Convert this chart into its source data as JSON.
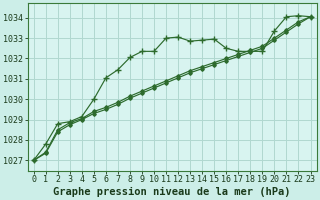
{
  "title": "Graphe pression niveau de la mer (hPa)",
  "bg_color": "#cceee8",
  "plot_bg_color": "#d8f4f0",
  "line_color": "#2d6b2d",
  "grid_color": "#b0d8d0",
  "ylim": [
    1026.5,
    1034.7
  ],
  "xlim": [
    -0.5,
    23.5
  ],
  "yticks": [
    1027,
    1028,
    1029,
    1030,
    1031,
    1032,
    1033,
    1034
  ],
  "xticks": [
    0,
    1,
    2,
    3,
    4,
    5,
    6,
    7,
    8,
    9,
    10,
    11,
    12,
    13,
    14,
    15,
    16,
    17,
    18,
    19,
    20,
    21,
    22,
    23
  ],
  "line1_x": [
    0,
    1,
    2,
    3,
    4,
    5,
    6,
    7,
    8,
    9,
    10,
    11,
    12,
    13,
    14,
    15,
    16,
    17,
    18,
    19,
    20,
    21,
    22,
    23
  ],
  "line1_y": [
    1027.0,
    1027.8,
    1028.8,
    1028.9,
    1029.15,
    1030.0,
    1031.05,
    1031.45,
    1032.05,
    1032.35,
    1032.35,
    1033.0,
    1033.05,
    1032.85,
    1032.9,
    1032.95,
    1032.5,
    1032.35,
    1032.35,
    1032.35,
    1033.35,
    1034.05,
    1034.1,
    1034.05
  ],
  "line2_x": [
    0,
    1,
    2,
    3,
    4,
    5,
    6,
    7,
    8,
    9,
    10,
    11,
    12,
    13,
    14,
    15,
    16,
    17,
    18,
    19,
    20,
    21,
    22,
    23
  ],
  "line2_y": [
    1027.0,
    1027.4,
    1028.5,
    1028.85,
    1029.05,
    1029.4,
    1029.6,
    1029.85,
    1030.15,
    1030.4,
    1030.65,
    1030.9,
    1031.15,
    1031.4,
    1031.6,
    1031.8,
    1032.0,
    1032.2,
    1032.4,
    1032.6,
    1033.0,
    1033.4,
    1033.8,
    1034.05
  ],
  "line3_x": [
    0,
    1,
    2,
    3,
    4,
    5,
    6,
    7,
    8,
    9,
    10,
    11,
    12,
    13,
    14,
    15,
    16,
    17,
    18,
    19,
    20,
    21,
    22,
    23
  ],
  "line3_y": [
    1027.0,
    1027.35,
    1028.4,
    1028.75,
    1029.0,
    1029.3,
    1029.5,
    1029.75,
    1030.05,
    1030.3,
    1030.55,
    1030.8,
    1031.05,
    1031.3,
    1031.5,
    1031.7,
    1031.9,
    1032.1,
    1032.3,
    1032.5,
    1032.9,
    1033.3,
    1033.7,
    1034.05
  ],
  "title_fontsize": 7.5,
  "tick_fontsize": 6.0
}
